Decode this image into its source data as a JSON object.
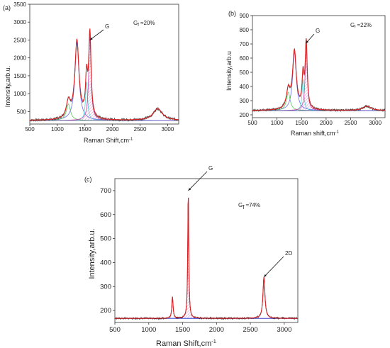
{
  "chart_data": [
    {
      "id": "a",
      "type": "line",
      "panel_label": "(a)",
      "xlabel": "Raman Shift,cm",
      "xlabel_sup": "-1",
      "ylabel": "Intensity,arb.u.",
      "xlim": [
        500,
        3200
      ],
      "ylim": [
        150,
        3500
      ],
      "xticks": [
        500,
        1000,
        1500,
        2000,
        2500,
        3000
      ],
      "yticks": [
        500,
        1000,
        1500,
        2000,
        2500,
        3000,
        3500
      ],
      "grid": false,
      "annotation": {
        "text": "G",
        "x": 1590,
        "y": 2500
      },
      "gf": {
        "main": "G",
        "sub": "f",
        "rest": " ≈20%"
      },
      "baseline": 250,
      "components": [
        {
          "color": "#6666ee",
          "center": 1355,
          "width": 90,
          "height": 2180
        },
        {
          "color": "#55cc55",
          "center": 1200,
          "width": 90,
          "height": 460
        },
        {
          "color": "#44dddd",
          "center": 1530,
          "width": 45,
          "height": 1080
        },
        {
          "color": "#cc44aa",
          "center": 1590,
          "width": 50,
          "height": 2350,
          "hatched": true
        },
        {
          "color": "#ccaa33",
          "center": 2820,
          "width": 200,
          "height": 330
        }
      ],
      "envelope_color": "#dd2222",
      "data_color": "#444444"
    },
    {
      "id": "b",
      "type": "line",
      "panel_label": "(b)",
      "xlabel": "Raman shift,cm",
      "xlabel_sup": "-1",
      "ylabel": "Intensity,arb.u",
      "xlim": [
        500,
        3200
      ],
      "ylim": [
        180,
        900
      ],
      "xticks": [
        500,
        1000,
        1500,
        2000,
        2500,
        3000
      ],
      "yticks": [
        200,
        300,
        400,
        500,
        600,
        700,
        800,
        900
      ],
      "grid": false,
      "annotation": {
        "text": "G",
        "x": 1590,
        "y": 705
      },
      "gf": {
        "main": "G",
        "sub": "f",
        "rest": " ≈22%"
      },
      "baseline": 230,
      "components": [
        {
          "color": "#6666ee",
          "center": 1355,
          "width": 90,
          "height": 410
        },
        {
          "color": "#55cc55",
          "center": 1230,
          "width": 90,
          "height": 130
        },
        {
          "color": "#44dddd",
          "center": 1530,
          "width": 45,
          "height": 220
        },
        {
          "color": "#cc44aa",
          "center": 1595,
          "width": 50,
          "height": 470,
          "hatched": true
        },
        {
          "color": "#ccaa33",
          "center": 2830,
          "width": 200,
          "height": 30
        }
      ],
      "envelope_color": "#dd2222",
      "data_color": "#444444"
    },
    {
      "id": "c",
      "type": "line",
      "panel_label": "(c)",
      "xlabel": "Raman Shift,cm",
      "xlabel_sup": "-1",
      "ylabel": "Intensity,arb.u.",
      "xlim": [
        500,
        3200
      ],
      "ylim": [
        150,
        750
      ],
      "xticks": [
        500,
        1000,
        1500,
        2000,
        2500,
        3000
      ],
      "yticks": [
        200,
        300,
        400,
        500,
        600,
        700
      ],
      "grid": false,
      "annotations": [
        {
          "text": "G",
          "x": 1583,
          "y": 700
        },
        {
          "text": "2D",
          "x": 2700,
          "y": 340
        }
      ],
      "gf": {
        "main": "G",
        "sub": "f",
        "rest": " ≈74%"
      },
      "baseline": 167,
      "components": [
        {
          "color": "#6666ee",
          "center": 1350,
          "width": 22,
          "height": 90
        },
        {
          "color": "#cc44aa",
          "center": 1583,
          "width": 18,
          "height": 528,
          "hatched": true
        },
        {
          "color": "#6666ee",
          "center": 2700,
          "width": 35,
          "height": 172
        }
      ],
      "envelope_color": "#dd2222",
      "data_color": "#111111"
    }
  ]
}
